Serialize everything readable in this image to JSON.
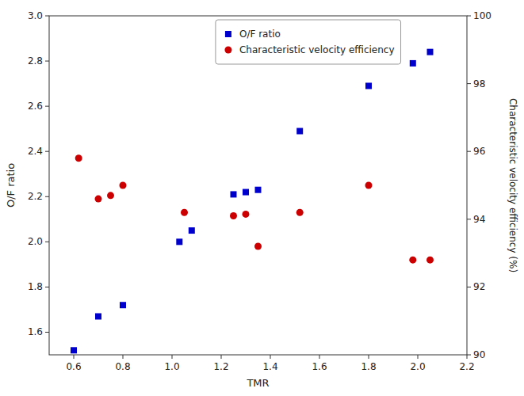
{
  "chart_data": {
    "type": "scatter",
    "xlabel": "TMR",
    "ylabel": "O/F ratio",
    "y2label": "Characteristic velocity efficiency (%)",
    "xlim": [
      0.5,
      2.2
    ],
    "xticks": [
      0.6,
      0.8,
      {
        "value": 1,
        "label": "1.0"
      },
      1.2,
      1.4,
      1.6,
      1.8,
      {
        "value": 2,
        "label": "2.0"
      },
      2.2
    ],
    "ylim": [
      1.5,
      3.0
    ],
    "yticks": [
      1.6,
      1.8,
      {
        "value": 2,
        "label": "2.0"
      },
      2.2,
      2.4,
      2.6,
      2.8,
      {
        "value": 3,
        "label": "3.0"
      }
    ],
    "y2lim": [
      90,
      100
    ],
    "y2ticks": [
      90,
      92,
      94,
      96,
      98,
      100
    ],
    "grid": false,
    "legend": "upper center",
    "series": [
      {
        "name": "O/F ratio",
        "color": "#0000cd",
        "marker": "square",
        "x": [
          0.6,
          0.7,
          0.8,
          1.03,
          1.08,
          1.25,
          1.3,
          1.35,
          1.52,
          1.8,
          1.98,
          2.05
        ],
        "values": [
          1.52,
          1.67,
          1.72,
          2.0,
          2.05,
          2.21,
          2.22,
          2.23,
          2.49,
          2.69,
          2.79,
          2.84
        ]
      },
      {
        "name": "Characteristic velocity efficiency",
        "color": "#cc0000",
        "marker": "circle",
        "axis": "y2",
        "x": [
          0.62,
          0.7,
          0.75,
          0.8,
          1.05,
          1.25,
          1.3,
          1.35,
          1.52,
          1.8,
          1.98,
          2.05
        ],
        "values": [
          95.8,
          94.6,
          94.7,
          95.0,
          94.2,
          94.1,
          94.15,
          93.2,
          94.2,
          95.0,
          92.8,
          92.8
        ]
      }
    ]
  }
}
